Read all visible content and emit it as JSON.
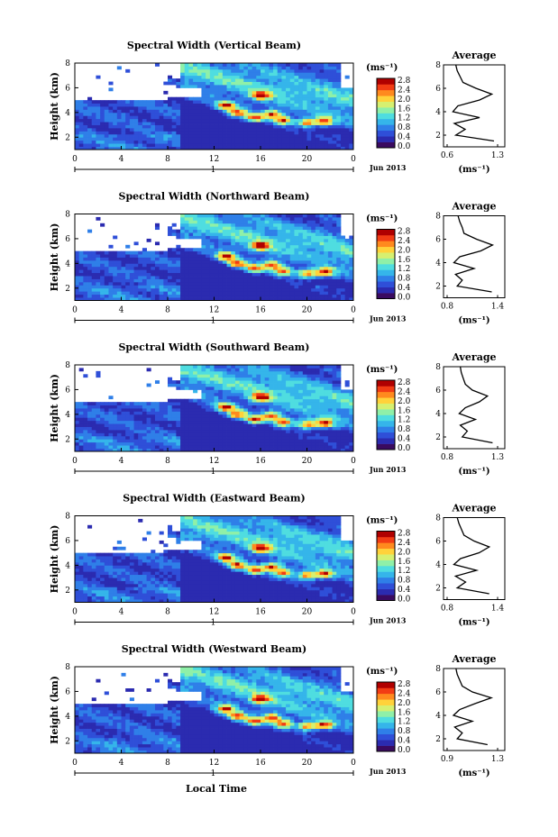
{
  "figure": {
    "date_label": "Jun 2013",
    "xlabel": "Local Time",
    "x_ticks": [
      "0",
      "4",
      "8",
      "12",
      "16",
      "20",
      "0"
    ],
    "day_label": "1",
    "ylabel": "Height (km)",
    "y_ticks": [
      "2",
      "4",
      "6",
      "8"
    ],
    "colorbar_unit": "(ms⁻¹)",
    "colorbar_ticks": [
      "0.0",
      "0.4",
      "0.8",
      "1.2",
      "1.6",
      "2.0",
      "2.4",
      "2.8"
    ],
    "profile_title": "Average",
    "profile_xlabel": "(ms⁻¹)"
  },
  "colors": {
    "colormap": [
      "#3a0a60",
      "#2b2bb0",
      "#2f4fd8",
      "#2f7fe8",
      "#35b5ea",
      "#4fdde0",
      "#8ff0a8",
      "#d6f070",
      "#ffd23a",
      "#ff8a1e",
      "#f23c14",
      "#b00000"
    ]
  },
  "chart_data": [
    {
      "type": "heatmap",
      "title": "Spectral Width (Vertical Beam)",
      "x_range": [
        "2013-06-01 00:00",
        "2013-06-02 00:00"
      ],
      "y_range_km": [
        1,
        8
      ],
      "color_range": [
        0.0,
        2.9
      ],
      "profile": {
        "type": "line",
        "title": "Average",
        "x_ticks": [
          "0.6",
          "1.3"
        ],
        "x_range": [
          0.6,
          1.3
        ],
        "heights_km": [
          1.5,
          2.0,
          2.5,
          3.0,
          3.5,
          4.0,
          4.5,
          5.0,
          5.5,
          6.0,
          6.5,
          7.0,
          7.5,
          8.0
        ],
        "values": [
          1.25,
          0.72,
          0.85,
          0.7,
          1.05,
          0.68,
          0.75,
          1.05,
          1.22,
          1.0,
          0.82,
          0.78,
          0.74,
          0.72
        ]
      }
    },
    {
      "type": "heatmap",
      "title": "Spectral Width (Northward Beam)",
      "x_range": [
        "2013-06-01 00:00",
        "2013-06-02 00:00"
      ],
      "y_range_km": [
        1,
        8
      ],
      "color_range": [
        0.0,
        2.9
      ],
      "profile": {
        "type": "line",
        "title": "Average",
        "x_ticks": [
          "0.8",
          "1.4"
        ],
        "x_range": [
          0.8,
          1.4
        ],
        "heights_km": [
          1.5,
          2.0,
          2.5,
          3.0,
          3.5,
          4.0,
          4.5,
          5.0,
          5.5,
          6.0,
          6.5,
          7.0,
          7.5,
          8.0
        ],
        "values": [
          1.33,
          0.92,
          0.98,
          0.9,
          1.12,
          0.88,
          0.95,
          1.2,
          1.34,
          1.15,
          1.0,
          0.98,
          0.95,
          0.93
        ]
      }
    },
    {
      "type": "heatmap",
      "title": "Spectral Width (Southward Beam)",
      "x_range": [
        "2013-06-01 00:00",
        "2013-06-02 00:00"
      ],
      "y_range_km": [
        1,
        8
      ],
      "color_range": [
        0.0,
        2.9
      ],
      "profile": {
        "type": "line",
        "title": "Average",
        "x_ticks": [
          "0.8",
          "1.3"
        ],
        "x_range": [
          0.8,
          1.3
        ],
        "heights_km": [
          1.5,
          2.0,
          2.5,
          3.0,
          3.5,
          4.0,
          4.5,
          5.0,
          5.5,
          6.0,
          6.5,
          7.0,
          7.5,
          8.0
        ],
        "values": [
          1.25,
          0.95,
          1.0,
          0.93,
          1.08,
          0.92,
          0.98,
          1.12,
          1.2,
          1.05,
          0.98,
          0.96,
          0.94,
          0.93
        ]
      }
    },
    {
      "type": "heatmap",
      "title": "Spectral Width (Eastward Beam)",
      "x_range": [
        "2013-06-01 00:00",
        "2013-06-02 00:00"
      ],
      "y_range_km": [
        1,
        8
      ],
      "color_range": [
        0.0,
        2.9
      ],
      "profile": {
        "type": "line",
        "title": "Average",
        "x_ticks": [
          "0.8",
          "1.4"
        ],
        "x_range": [
          0.8,
          1.4
        ],
        "heights_km": [
          1.5,
          2.0,
          2.5,
          3.0,
          3.5,
          4.0,
          4.5,
          5.0,
          5.5,
          6.0,
          6.5,
          7.0,
          7.5,
          8.0
        ],
        "values": [
          1.3,
          0.92,
          1.02,
          0.9,
          1.15,
          0.88,
          0.96,
          1.18,
          1.3,
          1.12,
          1.0,
          0.97,
          0.94,
          0.92
        ]
      }
    },
    {
      "type": "heatmap",
      "title": "Spectral Width (Westward Beam)",
      "x_range": [
        "2013-06-01 00:00",
        "2013-06-02 00:00"
      ],
      "y_range_km": [
        1,
        8
      ],
      "color_range": [
        0.0,
        2.9
      ],
      "profile": {
        "type": "line",
        "title": "Average",
        "x_ticks": [
          "0.9",
          "1.3"
        ],
        "x_range": [
          0.9,
          1.3
        ],
        "heights_km": [
          1.5,
          2.0,
          2.5,
          3.0,
          3.5,
          4.0,
          4.5,
          5.0,
          5.5,
          6.0,
          6.5,
          7.0,
          7.5,
          8.0
        ],
        "values": [
          1.22,
          0.98,
          1.02,
          0.96,
          1.1,
          0.95,
          1.0,
          1.12,
          1.25,
          1.1,
          1.02,
          1.0,
          0.98,
          0.97
        ]
      }
    }
  ]
}
